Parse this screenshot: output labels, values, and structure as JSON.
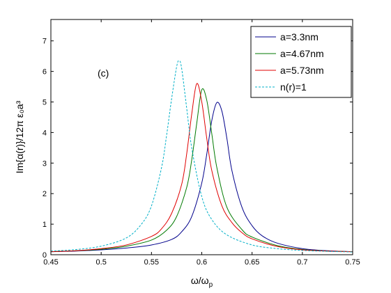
{
  "chart_data": {
    "type": "line",
    "title": "",
    "annotation": "(c)",
    "xlabel_main": "ω/ω",
    "xlabel_sub": "p",
    "ylabel": "Im{α(r)}/12π ε₀a³",
    "xlim": [
      0.45,
      0.75
    ],
    "ylim": [
      0,
      7.7
    ],
    "xticks": [
      0.45,
      0.5,
      0.55,
      0.6,
      0.65,
      0.7,
      0.75
    ],
    "yticks": [
      0,
      1,
      2,
      3,
      4,
      5,
      6,
      7
    ],
    "xtick_labels": [
      "0.45",
      "0.5",
      "0.55",
      "0.6",
      "0.65",
      "0.7",
      "0.75"
    ],
    "ytick_labels": [
      "0",
      "1",
      "2",
      "3",
      "4",
      "5",
      "6",
      "7"
    ],
    "grid": false,
    "legend_position": "top-right",
    "series": [
      {
        "name": "a=3.3nm",
        "color": "#00008b",
        "dash": "solid",
        "x": [
          0.45,
          0.475,
          0.5,
          0.525,
          0.55,
          0.57,
          0.58,
          0.59,
          0.6,
          0.605,
          0.61,
          0.615,
          0.62,
          0.625,
          0.63,
          0.64,
          0.65,
          0.66,
          0.675,
          0.7,
          0.725,
          0.75
        ],
        "y": [
          0.1,
          0.12,
          0.16,
          0.22,
          0.32,
          0.5,
          0.75,
          1.25,
          2.35,
          3.3,
          4.4,
          4.98,
          4.7,
          3.8,
          2.75,
          1.55,
          0.95,
          0.62,
          0.38,
          0.2,
          0.13,
          0.1
        ]
      },
      {
        "name": "a=4.67nm",
        "color": "#007a00",
        "dash": "solid",
        "x": [
          0.45,
          0.475,
          0.5,
          0.525,
          0.55,
          0.565,
          0.575,
          0.585,
          0.59,
          0.595,
          0.6,
          0.605,
          0.61,
          0.615,
          0.625,
          0.64,
          0.65,
          0.675,
          0.7,
          0.725,
          0.75
        ],
        "y": [
          0.1,
          0.13,
          0.18,
          0.28,
          0.48,
          0.8,
          1.25,
          2.2,
          3.1,
          4.3,
          5.4,
          5.05,
          3.95,
          2.85,
          1.55,
          0.82,
          0.58,
          0.3,
          0.17,
          0.12,
          0.1
        ]
      },
      {
        "name": "a=5.73nm",
        "color": "#e00000",
        "dash": "solid",
        "x": [
          0.45,
          0.475,
          0.5,
          0.525,
          0.55,
          0.56,
          0.57,
          0.58,
          0.585,
          0.59,
          0.595,
          0.6,
          0.605,
          0.61,
          0.62,
          0.63,
          0.64,
          0.65,
          0.675,
          0.7,
          0.725,
          0.75
        ],
        "y": [
          0.1,
          0.13,
          0.2,
          0.32,
          0.6,
          0.85,
          1.35,
          2.3,
          3.3,
          4.6,
          5.6,
          5.0,
          3.8,
          2.75,
          1.6,
          1.05,
          0.72,
          0.52,
          0.27,
          0.16,
          0.12,
          0.1
        ]
      },
      {
        "name": "n(r)=1",
        "color": "#00b0c8",
        "dash": "dashed",
        "x": [
          0.45,
          0.475,
          0.5,
          0.525,
          0.54,
          0.55,
          0.56,
          0.565,
          0.57,
          0.575,
          0.5775,
          0.58,
          0.585,
          0.59,
          0.6,
          0.61,
          0.625,
          0.65,
          0.675,
          0.7,
          0.725,
          0.75
        ],
        "y": [
          0.12,
          0.17,
          0.28,
          0.55,
          1.0,
          1.6,
          2.85,
          3.9,
          5.1,
          6.15,
          6.35,
          6.1,
          4.8,
          3.5,
          1.9,
          1.15,
          0.65,
          0.32,
          0.2,
          0.14,
          0.11,
          0.09
        ]
      }
    ]
  }
}
